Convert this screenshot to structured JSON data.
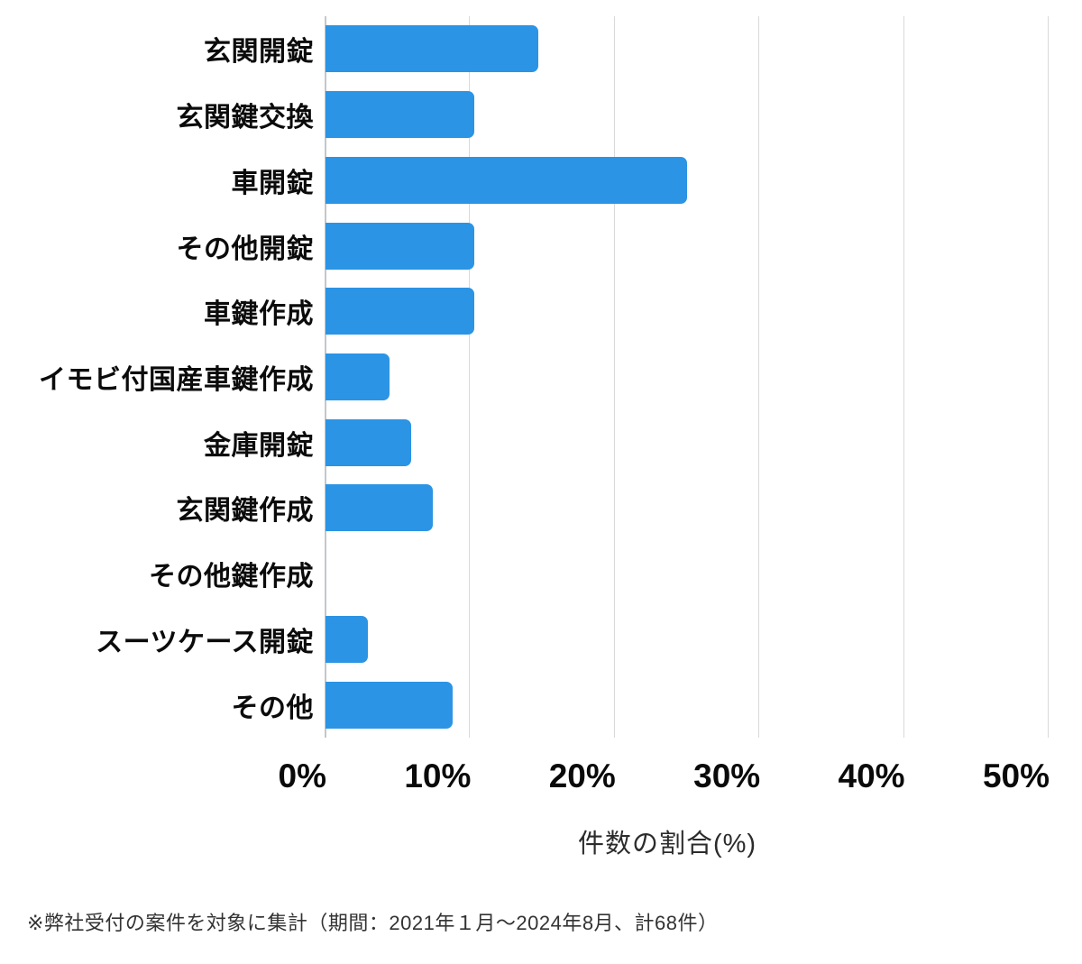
{
  "chart_data": {
    "type": "bar",
    "orientation": "horizontal",
    "title": "",
    "categories": [
      "玄関開錠",
      "玄関鍵交換",
      "車開錠",
      "その他開錠",
      "車鍵作成",
      "イモビ付国産車鍵作成",
      "金庫開錠",
      "玄関鍵作成",
      "その他鍵作成",
      "スーツケース開錠",
      "その他"
    ],
    "values": [
      14.7,
      10.3,
      25.0,
      10.3,
      10.3,
      4.4,
      5.9,
      7.4,
      0,
      2.9,
      8.8
    ],
    "xlabel": "件数の割合(%)",
    "ylabel": "",
    "xlim": [
      0,
      50
    ],
    "x_ticks": [
      "0%",
      "10%",
      "20%",
      "30%",
      "40%",
      "50%"
    ],
    "grid": "vertical-only",
    "legend": "none",
    "bar_color": "#2b94e4",
    "gridline_color": "#d9d9d9",
    "axisline_color": "#c2c7cc"
  },
  "footnote": "※弊社受付の案件を対象に集計（期間：2021年１月～2024年8月、計68件）"
}
